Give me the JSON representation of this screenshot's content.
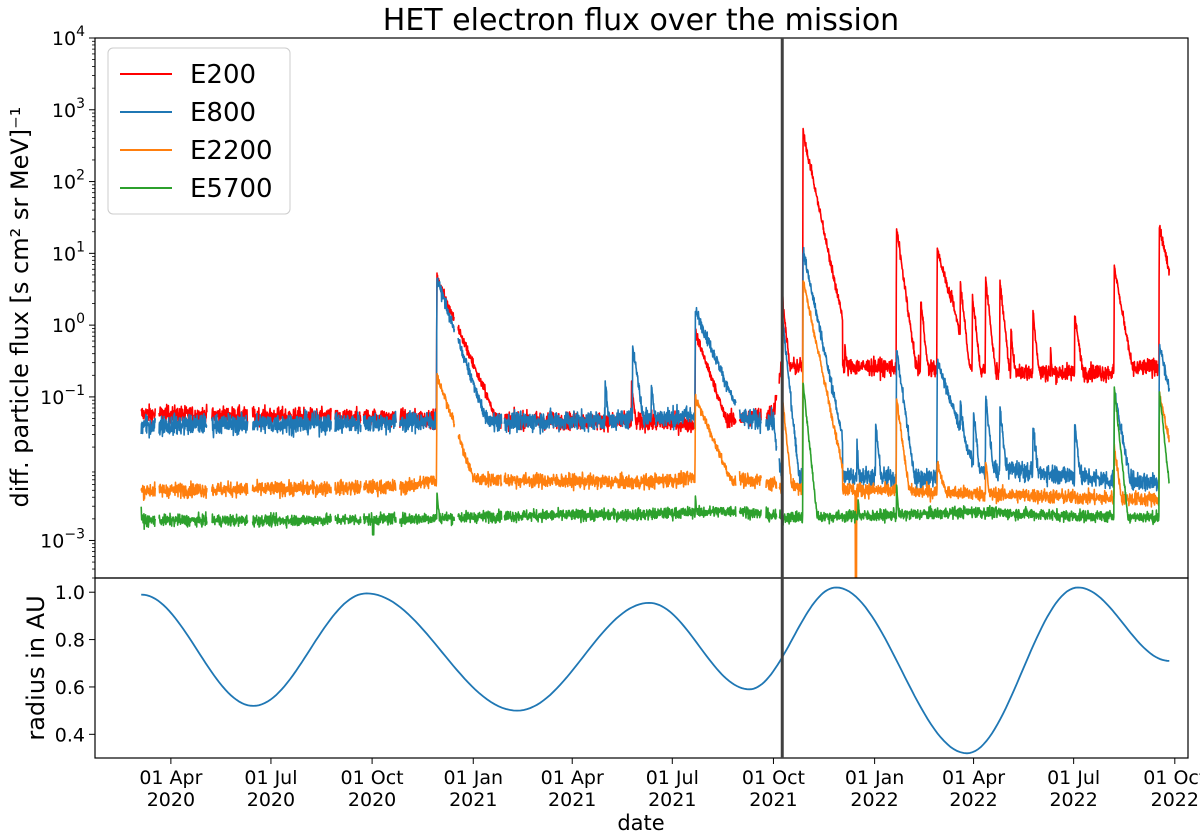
{
  "chart_data": {
    "title": "HET electron flux over the mission",
    "xlabel": "date",
    "date_range": [
      "2020-03-05",
      "2022-09-26"
    ],
    "xlim": [
      "2020-01-23",
      "2022-10-13"
    ],
    "x_ticks": [
      {
        "date": "2020-04-01",
        "line1": "01 Apr",
        "line2": "2020"
      },
      {
        "date": "2020-07-01",
        "line1": "01 Jul",
        "line2": "2020"
      },
      {
        "date": "2020-10-01",
        "line1": "01 Oct",
        "line2": "2020"
      },
      {
        "date": "2021-01-01",
        "line1": "01 Jan",
        "line2": "2021"
      },
      {
        "date": "2021-04-01",
        "line1": "01 Apr",
        "line2": "2021"
      },
      {
        "date": "2021-07-01",
        "line1": "01 Jul",
        "line2": "2021"
      },
      {
        "date": "2021-10-01",
        "line1": "01 Oct",
        "line2": "2021"
      },
      {
        "date": "2022-01-01",
        "line1": "01 Jan",
        "line2": "2022"
      },
      {
        "date": "2022-04-01",
        "line1": "01 Apr",
        "line2": "2022"
      },
      {
        "date": "2022-07-01",
        "line1": "01 Jul",
        "line2": "2022"
      },
      {
        "date": "2022-10-01",
        "line1": "01 Oct",
        "line2": "2022"
      }
    ],
    "vertical_marker_date": "2021-10-09",
    "panels": [
      {
        "name": "flux",
        "type": "line",
        "yscale": "log",
        "ylabel": "diff. particle flux [s cm² sr MeV]⁻¹",
        "ylim": [
          0.0003,
          10000
        ],
        "y_ticks": [
          {
            "value": 0.001,
            "mantissa": "10",
            "exp": "−3"
          },
          {
            "value": 0.1,
            "mantissa": "10",
            "exp": "−1"
          },
          {
            "value": 1,
            "mantissa": "10",
            "exp": "0"
          },
          {
            "value": 10,
            "mantissa": "10",
            "exp": "1"
          },
          {
            "value": 100,
            "mantissa": "10",
            "exp": "2"
          },
          {
            "value": 1000,
            "mantissa": "10",
            "exp": "3"
          },
          {
            "value": 10000,
            "mantissa": "10",
            "exp": "4"
          }
        ],
        "gap_ranges": [
          [
            "2020-03-18",
            "2020-03-21"
          ],
          [
            "2020-05-04",
            "2020-05-08"
          ],
          [
            "2020-06-10",
            "2020-06-14"
          ],
          [
            "2020-08-25",
            "2020-08-28"
          ],
          [
            "2020-09-21",
            "2020-09-23"
          ],
          [
            "2020-10-23",
            "2020-10-26"
          ],
          [
            "2020-12-15",
            "2020-12-18"
          ],
          [
            "2021-01-27",
            "2021-01-29"
          ],
          [
            "2021-08-28",
            "2021-08-31"
          ],
          [
            "2021-09-20",
            "2021-09-24"
          ],
          [
            "2021-10-04",
            "2021-10-06"
          ]
        ],
        "series": [
          {
            "name": "E200",
            "color": "#ff0000",
            "baseline": [
              [
                "2020-03-05",
                0.058
              ],
              [
                "2020-09-01",
                0.052
              ],
              [
                "2020-11-01",
                0.051
              ],
              [
                "2021-03-01",
                0.047
              ],
              [
                "2021-06-01",
                0.045
              ],
              [
                "2021-08-01",
                0.041
              ],
              [
                "2021-09-01",
                0.05
              ],
              [
                "2021-10-01",
                0.06
              ],
              [
                "2021-10-08",
                0.26
              ],
              [
                "2021-11-15",
                0.27
              ],
              [
                "2022-01-01",
                0.26
              ],
              [
                "2022-04-01",
                0.24
              ],
              [
                "2022-06-01",
                0.22
              ],
              [
                "2022-08-01",
                0.22
              ],
              [
                "2022-09-26",
                0.28
              ]
            ],
            "noise": 0.12,
            "events": [
              [
                "2020-11-29",
                4.5,
                12
              ],
              [
                "2021-05-25",
                0.15,
                3
              ],
              [
                "2021-07-22",
                0.8,
                10
              ],
              [
                "2021-10-09",
                2.5,
                3
              ],
              [
                "2021-10-28",
                480,
                6
              ],
              [
                "2021-11-02",
                45,
                5
              ],
              [
                "2021-11-15",
                0.8,
                5
              ],
              [
                "2021-12-05",
                0.5,
                3
              ],
              [
                "2021-12-17",
                0.12,
                2
              ],
              [
                "2022-01-21",
                22,
                4
              ],
              [
                "2022-02-12",
                2.2,
                3
              ],
              [
                "2022-02-27",
                11,
                8
              ],
              [
                "2022-03-12",
                3,
                3
              ],
              [
                "2022-03-20",
                4,
                3
              ],
              [
                "2022-03-31",
                2.6,
                3
              ],
              [
                "2022-04-12",
                4.5,
                3
              ],
              [
                "2022-04-25",
                4.2,
                3
              ],
              [
                "2022-05-05",
                0.8,
                3
              ],
              [
                "2022-05-25",
                1.5,
                3
              ],
              [
                "2022-06-10",
                0.45,
                2
              ],
              [
                "2022-07-02",
                1.4,
                4
              ],
              [
                "2022-08-07",
                6.5,
                5
              ],
              [
                "2022-09-17",
                24,
                6
              ]
            ]
          },
          {
            "name": "E800",
            "color": "#1f77b4",
            "baseline": [
              [
                "2020-03-05",
                0.04
              ],
              [
                "2020-06-01",
                0.042
              ],
              [
                "2020-09-01",
                0.043
              ],
              [
                "2020-11-15",
                0.045
              ],
              [
                "2021-02-01",
                0.045
              ],
              [
                "2021-05-01",
                0.048
              ],
              [
                "2021-08-01",
                0.055
              ],
              [
                "2021-10-01",
                0.045
              ],
              [
                "2021-10-08",
                0.0075
              ],
              [
                "2022-01-01",
                0.0078
              ],
              [
                "2022-02-01",
                0.007
              ],
              [
                "2022-05-01",
                0.01
              ],
              [
                "2022-08-01",
                0.007
              ],
              [
                "2022-09-26",
                0.0065
              ]
            ],
            "noise": 0.14,
            "events": [
              [
                "2020-11-29",
                4.2,
                10
              ],
              [
                "2021-05-01",
                0.15,
                3
              ],
              [
                "2021-05-26",
                0.55,
                4
              ],
              [
                "2021-06-12",
                0.15,
                3
              ],
              [
                "2021-07-22",
                1.6,
                12
              ],
              [
                "2021-08-18",
                0.12,
                3
              ],
              [
                "2021-10-09",
                1.3,
                3
              ],
              [
                "2021-10-28",
                11,
                6
              ],
              [
                "2021-11-08",
                0.2,
                3
              ],
              [
                "2021-11-20",
                0.05,
                2
              ],
              [
                "2021-12-16",
                0.022,
                2
              ],
              [
                "2022-01-02",
                0.04,
                3
              ],
              [
                "2022-01-21",
                0.45,
                4
              ],
              [
                "2022-02-27",
                0.3,
                10
              ],
              [
                "2022-03-10",
                0.07,
                3
              ],
              [
                "2022-03-20",
                0.09,
                3
              ],
              [
                "2022-04-01",
                0.06,
                3
              ],
              [
                "2022-04-12",
                0.1,
                3
              ],
              [
                "2022-04-25",
                0.07,
                3
              ],
              [
                "2022-05-25",
                0.04,
                3
              ],
              [
                "2022-07-02",
                0.045,
                3
              ],
              [
                "2022-08-07",
                0.12,
                5
              ],
              [
                "2022-09-17",
                0.55,
                6
              ]
            ]
          },
          {
            "name": "E2200",
            "color": "#ff7f0e",
            "baseline": [
              [
                "2020-03-05",
                0.005
              ],
              [
                "2020-07-01",
                0.0052
              ],
              [
                "2020-11-01",
                0.0056
              ],
              [
                "2020-11-25",
                0.0068
              ],
              [
                "2021-01-01",
                0.0072
              ],
              [
                "2021-03-01",
                0.0068
              ],
              [
                "2021-06-01",
                0.0065
              ],
              [
                "2021-08-01",
                0.0075
              ],
              [
                "2021-09-15",
                0.0068
              ],
              [
                "2021-10-08",
                0.0058
              ],
              [
                "2022-01-01",
                0.005
              ],
              [
                "2022-04-01",
                0.0045
              ],
              [
                "2022-07-01",
                0.004
              ],
              [
                "2022-09-26",
                0.0037
              ]
            ],
            "noise": 0.1,
            "events": [
              [
                "2020-11-29",
                0.2,
                10
              ],
              [
                "2021-07-22",
                0.1,
                12
              ],
              [
                "2021-10-09",
                0.1,
                3
              ],
              [
                "2021-10-28",
                4.2,
                6
              ],
              [
                "2022-01-21",
                0.09,
                4
              ],
              [
                "2022-02-27",
                0.012,
                8
              ],
              [
                "2022-04-12",
                0.013,
                3
              ],
              [
                "2022-08-07",
                0.02,
                4
              ],
              [
                "2022-09-17",
                0.11,
                6
              ]
            ],
            "dropouts": [
              [
                "2021-12-15",
                0.0003
              ]
            ]
          },
          {
            "name": "E5700",
            "color": "#2ca02c",
            "baseline": [
              [
                "2020-03-05",
                0.0019
              ],
              [
                "2020-07-01",
                0.0019
              ],
              [
                "2020-11-01",
                0.002
              ],
              [
                "2021-02-01",
                0.0022
              ],
              [
                "2021-06-01",
                0.0023
              ],
              [
                "2021-09-01",
                0.0026
              ],
              [
                "2021-10-08",
                0.0021
              ],
              [
                "2022-01-01",
                0.0022
              ],
              [
                "2022-04-01",
                0.0025
              ],
              [
                "2022-07-01",
                0.0022
              ],
              [
                "2022-09-26",
                0.0021
              ]
            ],
            "noise": 0.08,
            "events": [
              [
                "2020-03-05",
                0.003,
                1
              ],
              [
                "2020-11-29",
                0.0045,
                3
              ],
              [
                "2021-07-22",
                0.004,
                3
              ],
              [
                "2021-10-28",
                0.15,
                3
              ],
              [
                "2021-12-17",
                0.004,
                2
              ],
              [
                "2022-01-21",
                0.006,
                2
              ],
              [
                "2022-08-07",
                0.13,
                3
              ],
              [
                "2022-09-17",
                0.12,
                3
              ]
            ],
            "dropouts": [
              [
                "2020-10-02",
                0.0012
              ]
            ]
          }
        ]
      },
      {
        "name": "radius",
        "type": "line",
        "ylabel": "radius in AU",
        "ylim": [
          0.3,
          1.06
        ],
        "y_ticks": [
          {
            "value": 0.4,
            "label": "0.4"
          },
          {
            "value": 0.6,
            "label": "0.6"
          },
          {
            "value": 0.8,
            "label": "0.8"
          },
          {
            "value": 1.0,
            "label": "1.0"
          }
        ],
        "series": [
          {
            "name": "radius",
            "color": "#1f77b4",
            "points": [
              [
                "2020-03-05",
                0.99
              ],
              [
                "2020-06-15",
                0.52
              ],
              [
                "2020-09-26",
                0.995
              ],
              [
                "2021-02-10",
                0.5
              ],
              [
                "2021-06-10",
                0.955
              ],
              [
                "2021-09-09",
                0.59
              ],
              [
                "2021-11-27",
                1.02
              ],
              [
                "2022-03-26",
                0.32
              ],
              [
                "2022-07-05",
                1.02
              ],
              [
                "2022-09-26",
                0.71
              ]
            ]
          }
        ]
      }
    ],
    "legend": {
      "position": "upper-left",
      "entries": [
        "E200",
        "E800",
        "E2200",
        "E5700"
      ]
    }
  }
}
